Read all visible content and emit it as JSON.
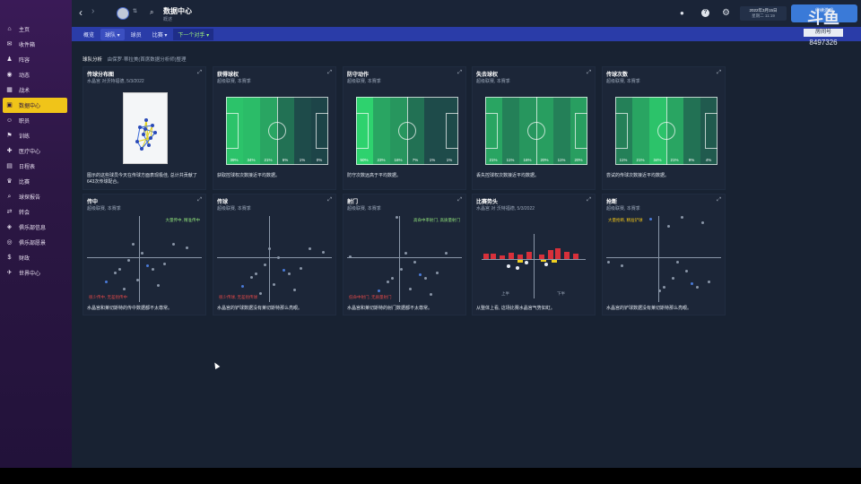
{
  "sidebar": {
    "items": [
      {
        "label": "主页",
        "icon": "home-icon",
        "glyph": "⌂"
      },
      {
        "label": "收件箱",
        "icon": "inbox-icon",
        "glyph": "✉"
      },
      {
        "label": "阵容",
        "icon": "squad-icon",
        "glyph": "♟"
      },
      {
        "label": "动态",
        "icon": "dynamics-icon",
        "glyph": "◉"
      },
      {
        "label": "战术",
        "icon": "tactics-icon",
        "glyph": "▦"
      },
      {
        "label": "数据中心",
        "icon": "data-hub-icon",
        "glyph": "▣",
        "active": true
      },
      {
        "label": "职员",
        "icon": "staff-icon",
        "glyph": "☺"
      },
      {
        "label": "训练",
        "icon": "training-icon",
        "glyph": "⚑"
      },
      {
        "label": "医疗中心",
        "icon": "medical-icon",
        "glyph": "✚"
      },
      {
        "label": "日程表",
        "icon": "schedule-icon",
        "glyph": "▤"
      },
      {
        "label": "比赛",
        "icon": "competition-icon",
        "glyph": "♛"
      },
      {
        "label": "球探报告",
        "icon": "scouting-icon",
        "glyph": "⌕"
      },
      {
        "label": "转会",
        "icon": "transfer-icon",
        "glyph": "⇄"
      },
      {
        "label": "俱乐部信息",
        "icon": "club-info-icon",
        "glyph": "◈"
      },
      {
        "label": "俱乐部愿景",
        "icon": "club-vision-icon",
        "glyph": "◎"
      },
      {
        "label": "财政",
        "icon": "finance-icon",
        "glyph": "$"
      },
      {
        "label": "世界中心",
        "icon": "world-icon",
        "glyph": "✈"
      }
    ]
  },
  "header": {
    "title": "数据中心",
    "subtitle": "概述",
    "date": "2022年3月15日",
    "day": "星期二 11:19",
    "continue_label": "继续游戏"
  },
  "watermark": {
    "brand": "斗鱼",
    "room_label": "房间号",
    "room_id": "8497326"
  },
  "tabs": [
    {
      "label": "概览"
    },
    {
      "label": "球队 ▾",
      "selected": true
    },
    {
      "label": "球员"
    },
    {
      "label": "比赛 ▾"
    },
    {
      "label": "下一个对手 ▾",
      "next": true
    }
  ],
  "breadcrumb": {
    "section": "球队分析",
    "detail": "由保罗·蒂拉美(首席数据分析师)整理"
  },
  "cards_top": [
    {
      "title": "传球分布图",
      "sub": "水晶宫 对沃特福德, 5/3/2022",
      "desc": "图示的这些球员今天在传球方面表现极佳, 总计共贡献了643次传球配合。"
    },
    {
      "title": "获得球权",
      "sub": "超级联赛, 本赛季",
      "desc": "获取控球权次数接近平均数据。",
      "values": [
        "39%",
        "34%",
        "21%",
        "6%",
        "1%",
        "0%"
      ],
      "level": [
        0.9,
        0.85,
        0.7,
        0.35,
        0.1,
        0.05
      ]
    },
    {
      "title": "防守动作",
      "sub": "超级联赛, 本赛季",
      "desc": "防守次数远高于平均数据。",
      "values": [
        "50%",
        "23%",
        "16%",
        "7%",
        "1%",
        "1%"
      ],
      "level": [
        1.0,
        0.7,
        0.6,
        0.35,
        0.1,
        0.1
      ]
    },
    {
      "title": "失去球权",
      "sub": "超级联赛, 本赛季",
      "desc": "丢失控球权次数接近平均数据。",
      "values": [
        "21%",
        "11%",
        "16%",
        "20%",
        "11%",
        "20%"
      ],
      "level": [
        0.7,
        0.45,
        0.6,
        0.65,
        0.45,
        0.65
      ]
    },
    {
      "title": "传球次数",
      "sub": "超级联赛, 本赛季",
      "desc": "尝试的传球次数接近平均数据。",
      "values": [
        "11%",
        "21%",
        "34%",
        "21%",
        "9%",
        "4%"
      ],
      "level": [
        0.45,
        0.7,
        0.9,
        0.7,
        0.35,
        0.2
      ]
    }
  ],
  "cards_bottom": [
    {
      "title": "传中",
      "sub": "超级联赛, 本赛季",
      "desc": "水晶宫和莱切斯特的传中数据都不太尊常。",
      "q_tr": "大量传中, 精准传中",
      "q_bl": "很少传中, 无差别传中"
    },
    {
      "title": "传球",
      "sub": "超级联赛, 本赛季",
      "desc": "水晶宫的铲球数据没有莱切斯特那么亮眼。",
      "q_tr": "",
      "q_bl": "很少传球, 无差别传球"
    },
    {
      "title": "射门",
      "sub": "超级联赛, 本赛季",
      "desc": "水晶宫和莱切斯特的射门数据都不太尊常。",
      "q_tr": "高命中率射门, 高质量射门",
      "q_bl": "低命中射门, 无质量射门"
    },
    {
      "title": "比赛势头",
      "sub": "水晶宫 对 沃特福德, 5/3/2022",
      "desc": "从整体上看, 这场比赛水晶宫气势如虹。",
      "x_left": "上半",
      "x_right": "下半"
    },
    {
      "title": "抢断",
      "sub": "超级联赛, 本赛季",
      "desc": "水晶宫的铲球数据没有莱切斯特那么亮眼。",
      "q_tl": "大量抢断, 精准铲球"
    }
  ],
  "colors": {
    "accent": "#f0c419",
    "tab_blue": "#2a3ca8",
    "pitch_hi": "#2ecc71",
    "pitch_lo": "#1d5e3e",
    "momentum_red": "#d8303a",
    "momentum_yellow": "#f0d020"
  }
}
